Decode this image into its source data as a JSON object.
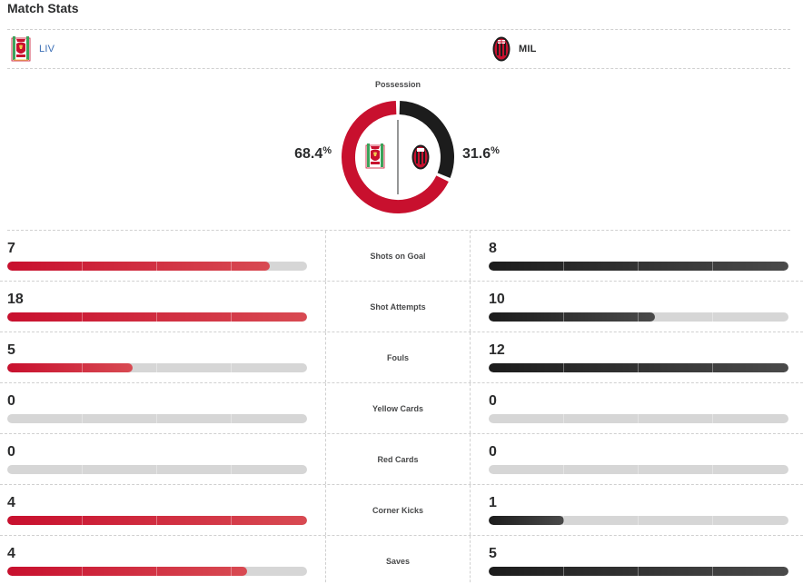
{
  "header": {
    "title": "Match Stats"
  },
  "teams": {
    "home": {
      "abbr": "LIV",
      "crest": "liverpool-crest-icon",
      "color": "#c8102e"
    },
    "away": {
      "abbr": "MIL",
      "crest": "ac-milan-crest-icon",
      "color": "#1c1c1c"
    }
  },
  "possession": {
    "label": "Possession",
    "home": 68.4,
    "away": 31.6,
    "home_text": "68.4",
    "away_text": "31.6",
    "unit": "%"
  },
  "stats": [
    {
      "label": "Shots on Goal",
      "home": "7",
      "away": "8",
      "home_fill": 0.875,
      "away_fill": 1.0
    },
    {
      "label": "Shot Attempts",
      "home": "18",
      "away": "10",
      "home_fill": 1.0,
      "away_fill": 0.556
    },
    {
      "label": "Fouls",
      "home": "5",
      "away": "12",
      "home_fill": 0.417,
      "away_fill": 1.0
    },
    {
      "label": "Yellow Cards",
      "home": "0",
      "away": "0",
      "home_fill": 0,
      "away_fill": 0
    },
    {
      "label": "Red Cards",
      "home": "0",
      "away": "0",
      "home_fill": 0,
      "away_fill": 0
    },
    {
      "label": "Corner Kicks",
      "home": "4",
      "away": "1",
      "home_fill": 1.0,
      "away_fill": 0.25
    },
    {
      "label": "Saves",
      "home": "4",
      "away": "5",
      "home_fill": 0.8,
      "away_fill": 1.0
    }
  ]
}
